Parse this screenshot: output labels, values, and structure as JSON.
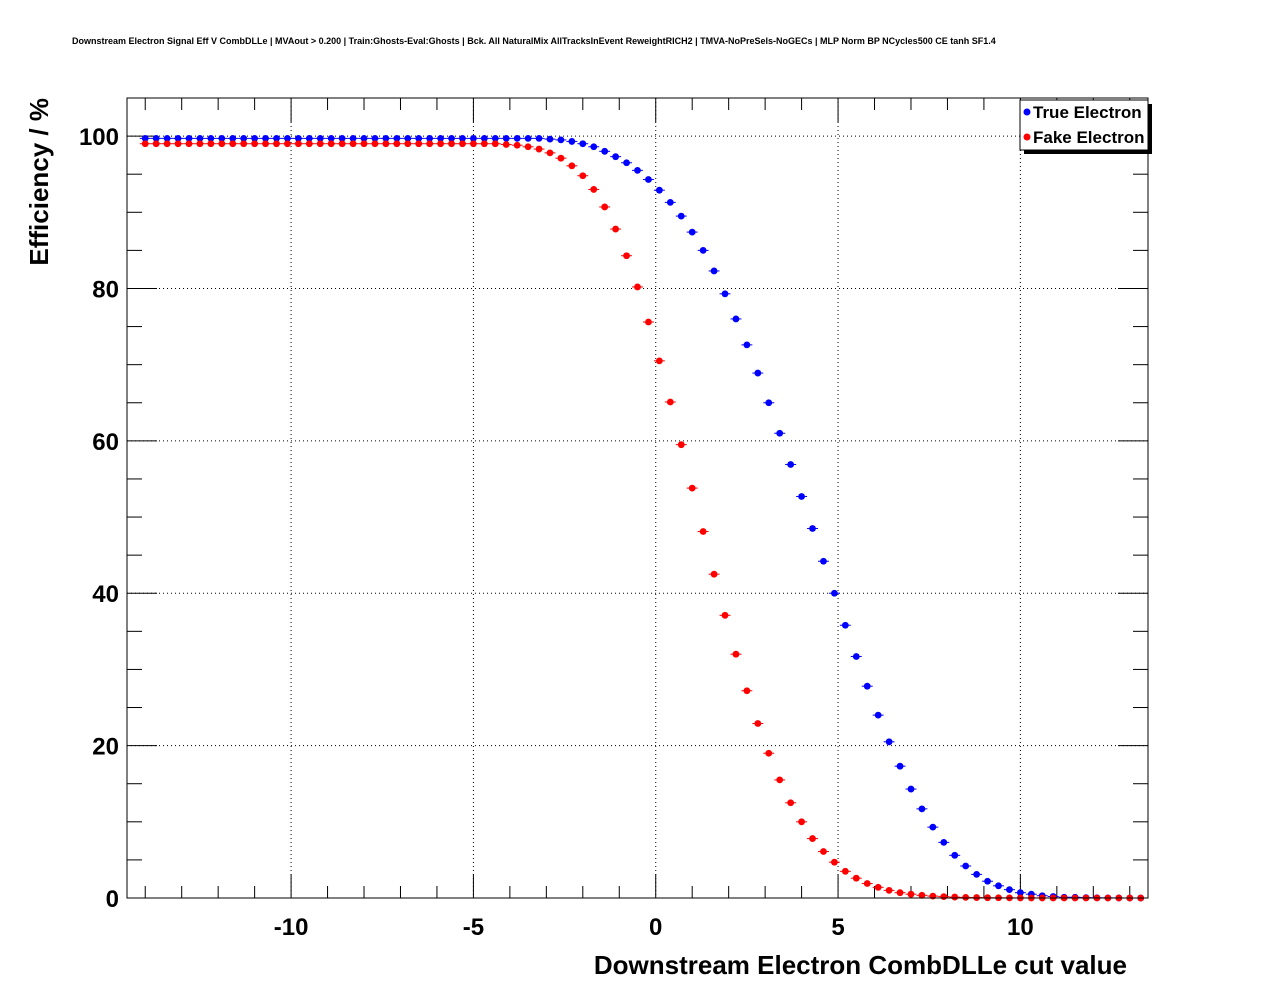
{
  "chart_data": {
    "type": "scatter",
    "title": "Downstream Electron Signal Eff V CombDLLe | MVAout > 0.200 | Train:Ghosts-Eval:Ghosts | Bck. All NaturalMix AllTracksInEvent ReweightRICH2 | TMVA-NoPreSels-NoGECs | MLP Norm BP NCycles500 CE tanh SF1.4",
    "xlabel": "Downstream Electron CombDLLe cut value",
    "ylabel": "Efficiency / %",
    "xlim": [
      -14.5,
      13.5
    ],
    "ylim": [
      0,
      105
    ],
    "xticks": [
      -10,
      -5,
      0,
      5,
      10
    ],
    "xtick_labels": [
      "-10",
      "-5",
      "0",
      "5",
      "10"
    ],
    "yticks": [
      0,
      20,
      40,
      60,
      80,
      100
    ],
    "ytick_labels": [
      "0",
      "20",
      "40",
      "60",
      "80",
      "100"
    ],
    "grid": true,
    "legend_position": "top-right",
    "x": [
      -14.0,
      -13.7,
      -13.4,
      -13.1,
      -12.8,
      -12.5,
      -12.2,
      -11.9,
      -11.6,
      -11.3,
      -11.0,
      -10.7,
      -10.4,
      -10.1,
      -9.8,
      -9.5,
      -9.2,
      -8.9,
      -8.6,
      -8.3,
      -8.0,
      -7.7,
      -7.4,
      -7.1,
      -6.8,
      -6.5,
      -6.2,
      -5.9,
      -5.6,
      -5.3,
      -5.0,
      -4.7,
      -4.4,
      -4.1,
      -3.8,
      -3.5,
      -3.2,
      -2.9,
      -2.6,
      -2.3,
      -2.0,
      -1.7,
      -1.4,
      -1.1,
      -0.8,
      -0.5,
      -0.2,
      0.1,
      0.4,
      0.7,
      1.0,
      1.3,
      1.6,
      1.9,
      2.2,
      2.5,
      2.8,
      3.1,
      3.4,
      3.7,
      4.0,
      4.3,
      4.6,
      4.9,
      5.2,
      5.5,
      5.8,
      6.1,
      6.4,
      6.7,
      7.0,
      7.3,
      7.6,
      7.9,
      8.2,
      8.5,
      8.8,
      9.1,
      9.4,
      9.7,
      10.0,
      10.3,
      10.6,
      10.9,
      11.2,
      11.5,
      11.8,
      12.1,
      12.4,
      12.7,
      13.0,
      13.3
    ],
    "series": [
      {
        "name": "True Electron",
        "color": "#0000ff",
        "values": [
          99.7,
          99.7,
          99.7,
          99.7,
          99.7,
          99.7,
          99.7,
          99.7,
          99.7,
          99.7,
          99.7,
          99.7,
          99.7,
          99.7,
          99.7,
          99.7,
          99.7,
          99.7,
          99.7,
          99.7,
          99.7,
          99.7,
          99.7,
          99.7,
          99.7,
          99.7,
          99.7,
          99.7,
          99.7,
          99.7,
          99.7,
          99.7,
          99.7,
          99.7,
          99.7,
          99.7,
          99.7,
          99.6,
          99.5,
          99.3,
          99.0,
          98.6,
          98.0,
          97.3,
          96.5,
          95.5,
          94.3,
          92.9,
          91.3,
          89.5,
          87.4,
          85.0,
          82.3,
          79.3,
          76.0,
          72.6,
          68.9,
          65.0,
          61.0,
          56.9,
          52.7,
          48.5,
          44.2,
          40.0,
          35.8,
          31.7,
          27.8,
          24.0,
          20.5,
          17.3,
          14.3,
          11.7,
          9.3,
          7.3,
          5.6,
          4.2,
          3.1,
          2.2,
          1.6,
          1.1,
          0.7,
          0.5,
          0.3,
          0.2,
          0.1,
          0.1,
          0.05,
          0.03,
          0.02,
          0.01,
          0.0,
          0.0
        ]
      },
      {
        "name": "Fake Electron",
        "color": "#ff0000",
        "values": [
          99.0,
          99.0,
          99.0,
          99.0,
          99.0,
          99.0,
          99.0,
          99.0,
          99.0,
          99.0,
          99.0,
          99.0,
          99.0,
          99.0,
          99.0,
          99.0,
          99.0,
          99.0,
          99.0,
          99.0,
          99.0,
          99.0,
          99.0,
          99.0,
          99.0,
          99.0,
          99.0,
          99.0,
          99.0,
          99.0,
          99.0,
          99.0,
          99.0,
          98.9,
          98.8,
          98.6,
          98.3,
          97.8,
          97.1,
          96.1,
          94.8,
          93.0,
          90.7,
          87.8,
          84.3,
          80.2,
          75.6,
          70.5,
          65.1,
          59.5,
          53.8,
          48.1,
          42.5,
          37.1,
          32.0,
          27.2,
          22.9,
          19.0,
          15.5,
          12.5,
          10.0,
          7.8,
          6.1,
          4.7,
          3.5,
          2.6,
          1.9,
          1.4,
          1.0,
          0.7,
          0.5,
          0.35,
          0.25,
          0.18,
          0.12,
          0.08,
          0.06,
          0.04,
          0.03,
          0.02,
          0.01,
          0.01,
          0.01,
          0.0,
          0.0,
          0.0,
          0.0,
          0.0,
          0.0,
          0.0,
          0.0,
          0.0
        ]
      }
    ]
  }
}
